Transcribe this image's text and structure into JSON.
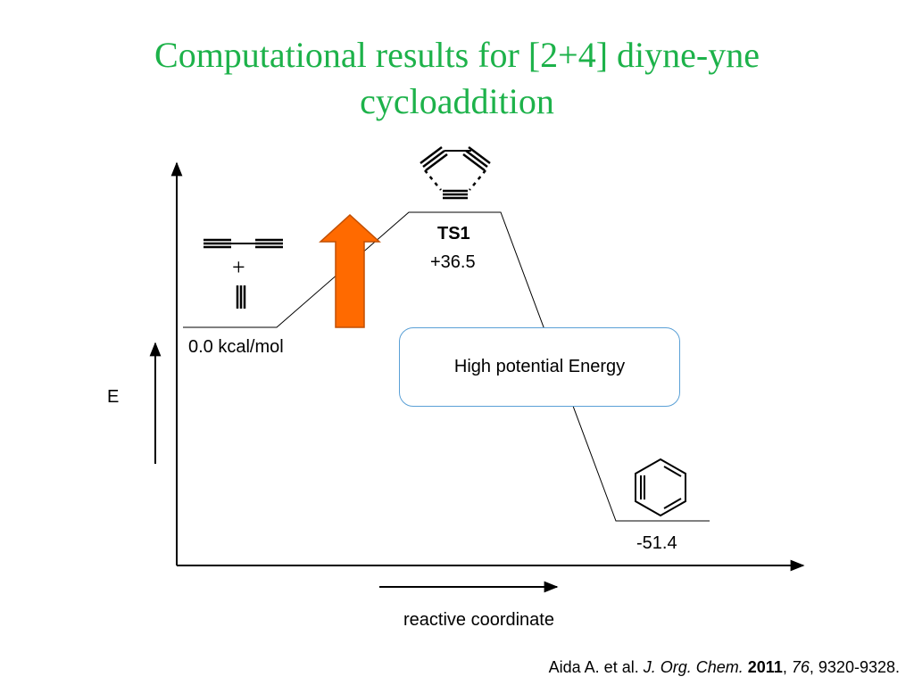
{
  "slide": {
    "title_line1": "Computational results for [2+4] diyne-yne",
    "title_line2": "cycloaddition"
  },
  "diagram": {
    "energy_axis_label": "E",
    "x_axis_label": "reactive coordinate",
    "reactant_energy": "0.0 kcal/mol",
    "reactant_plus": "+",
    "ts_name": "TS1",
    "ts_energy": "+36.5",
    "product_energy": "-51.4",
    "callout": "High potential Energy",
    "arrow_color": "#ff6a00",
    "title_color": "#1db24a",
    "callout_border_color": "#5aa0d6"
  },
  "citation": {
    "authors": "Aida A. et al.",
    "journal": "J. Org. Chem.",
    "year": "2011",
    "volume": "76",
    "pages": "9320-9328."
  }
}
